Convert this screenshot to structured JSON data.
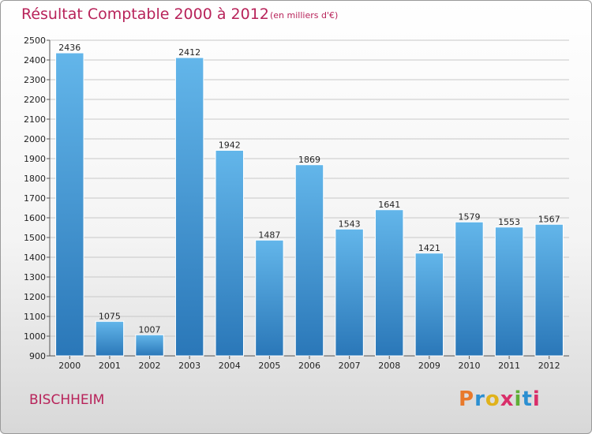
{
  "header": {
    "title": "Résultat Comptable 2000 à 2012",
    "subtitle": "(en milliers d'€)"
  },
  "footer": {
    "city": "BISCHHEIM",
    "logo": {
      "letters": [
        "P",
        "r",
        "o",
        "x",
        "i",
        "t",
        "i"
      ],
      "colors": [
        "#e8792b",
        "#2c8fd1",
        "#e0b21b",
        "#d92f6a",
        "#5fae35",
        "#2c8fd1",
        "#d92f6a"
      ]
    }
  },
  "colors": {
    "bar_top": "#63b6ea",
    "bar_bottom": "#2a77b8",
    "title": "#b8235a",
    "grid": "#c8c8c8"
  },
  "chart_data": {
    "type": "bar",
    "title": "Résultat Comptable 2000 à 2012",
    "subtitle": "(en milliers d'€)",
    "categories": [
      "2000",
      "2001",
      "2002",
      "2003",
      "2004",
      "2005",
      "2006",
      "2007",
      "2008",
      "2009",
      "2010",
      "2011",
      "2012"
    ],
    "values": [
      2436,
      1075,
      1007,
      2412,
      1942,
      1487,
      1869,
      1543,
      1641,
      1421,
      1579,
      1553,
      1567
    ],
    "data_labels": [
      "2436",
      "1075",
      "1007",
      "2412",
      "1942",
      "1487",
      "1869",
      "1543",
      "1641",
      "1421",
      "1579",
      "1553",
      "1567"
    ],
    "ylim": [
      900,
      2500
    ],
    "yticks": [
      900,
      1000,
      1100,
      1200,
      1300,
      1400,
      1500,
      1600,
      1700,
      1800,
      1900,
      2000,
      2100,
      2200,
      2300,
      2400,
      2500
    ],
    "grid": true,
    "legend": "none"
  }
}
